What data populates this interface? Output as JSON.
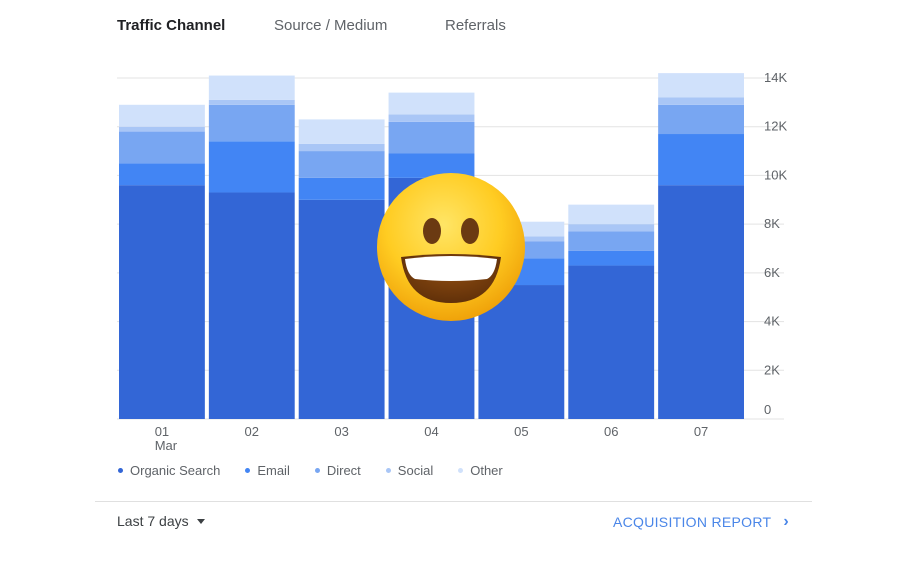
{
  "tabs": [
    {
      "label": "Traffic Channel",
      "active": true
    },
    {
      "label": "Source / Medium",
      "active": false
    },
    {
      "label": "Referrals",
      "active": false
    }
  ],
  "footer": {
    "range_label": "Last 7 days",
    "report_link": "ACQUISITION REPORT"
  },
  "overlay_icon": "grinning-face-emoji",
  "colors": {
    "Organic Search": "#3366d6",
    "Email": "#4285f4",
    "Direct": "#78a6f2",
    "Social": "#a9c6f6",
    "Other": "#d0e1fb",
    "link": "#4a86e8"
  },
  "chart_data": {
    "type": "bar",
    "stacked": true,
    "categories": [
      "01",
      "02",
      "03",
      "04",
      "05",
      "06",
      "07"
    ],
    "category_sublabels": [
      "Mar",
      "",
      "",
      "",
      "",
      "",
      ""
    ],
    "series": [
      {
        "name": "Organic Search",
        "values": [
          9600,
          9300,
          9000,
          9900,
          5500,
          6300,
          9600
        ]
      },
      {
        "name": "Email",
        "values": [
          900,
          2100,
          900,
          1000,
          1100,
          600,
          2100
        ]
      },
      {
        "name": "Direct",
        "values": [
          1300,
          1500,
          1100,
          1300,
          700,
          800,
          1200
        ]
      },
      {
        "name": "Social",
        "values": [
          200,
          200,
          300,
          300,
          200,
          300,
          300
        ]
      },
      {
        "name": "Other",
        "values": [
          900,
          1000,
          1000,
          900,
          600,
          800,
          1000
        ]
      }
    ],
    "ylim": [
      0,
      14000
    ],
    "yticks": [
      0,
      2000,
      4000,
      6000,
      8000,
      10000,
      12000,
      14000
    ],
    "ytick_labels": [
      "0",
      "2K",
      "4K",
      "6K",
      "8K",
      "10K",
      "12K",
      "14K"
    ],
    "y_axis_position": "right",
    "grid": true,
    "legend_position": "bottom-left",
    "xlabel": "",
    "ylabel": "",
    "title": ""
  }
}
